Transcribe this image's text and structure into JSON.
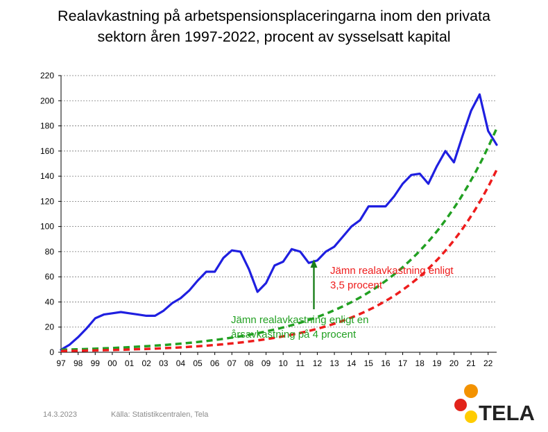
{
  "title": {
    "line1": "Realavkastning på arbetspensionsplaceringarna inom den privata",
    "line2": "sektorn åren 1997-2022, procent av sysselsatt kapital"
  },
  "footer": {
    "date": "14.3.2023",
    "source": "Källa: Statistikcentralen, Tela"
  },
  "logo": {
    "text": "TELA"
  },
  "colors": {
    "actual": "#1f1fe0",
    "smooth4": "#22a022",
    "smooth35": "#ee1c1c",
    "arrow": "#1a7f1a",
    "logo_orange": "#f39200",
    "logo_red": "#e2231a",
    "logo_yellow": "#ffcc00"
  },
  "chart_data": {
    "type": "line",
    "title": "Realavkastning på arbetspensionsplaceringarna inom den privata sektorn åren 1997-2022, procent av sysselsatt kapital",
    "xlabel": "",
    "ylabel": "",
    "xlim": [
      1997,
      2022.5
    ],
    "ylim": [
      0,
      220
    ],
    "yticks": [
      0,
      20,
      40,
      60,
      80,
      100,
      120,
      140,
      160,
      180,
      200,
      220
    ],
    "xtick_labels": [
      "97",
      "98",
      "99",
      "00",
      "01",
      "02",
      "03",
      "04",
      "05",
      "06",
      "07",
      "08",
      "09",
      "10",
      "11",
      "12",
      "13",
      "14",
      "15",
      "16",
      "17",
      "18",
      "19",
      "20",
      "21",
      "22"
    ],
    "grid": "horizontal dashed",
    "series": [
      {
        "key": "actual",
        "x": [
          1997.0,
          1997.5,
          1998.0,
          1998.5,
          1999.0,
          1999.5,
          2000.0,
          2000.5,
          2001.0,
          2001.5,
          2002.0,
          2002.5,
          2003.0,
          2003.5,
          2004.0,
          2004.5,
          2005.0,
          2005.5,
          2006.0,
          2006.5,
          2007.0,
          2007.5,
          2008.0,
          2008.5,
          2009.0,
          2009.5,
          2010.0,
          2010.5,
          2011.0,
          2011.5,
          2012.0,
          2012.5,
          2013.0,
          2013.5,
          2014.0,
          2014.5,
          2015.0,
          2015.5,
          2016.0,
          2016.5,
          2017.0,
          2017.5,
          2018.0,
          2018.5,
          2019.0,
          2019.5,
          2020.0,
          2020.5,
          2021.0,
          2021.5,
          2022.0,
          2022.5
        ],
        "values": [
          2,
          6,
          12,
          19,
          27,
          30,
          31,
          32,
          31,
          30,
          29,
          29,
          33,
          39,
          43,
          49,
          57,
          64,
          64,
          75,
          81,
          80,
          66,
          48,
          55,
          69,
          72,
          82,
          80,
          71,
          73,
          80,
          84,
          92,
          100,
          105,
          116,
          116,
          116,
          124,
          134,
          141,
          142,
          134,
          148,
          160,
          151,
          172,
          192,
          205,
          176,
          165
        ]
      },
      {
        "key": "smooth4",
        "name": "Jämn realavkastning enligt en årsavkastning på 4 procent",
        "x": [
          1997.0,
          2022.5
        ],
        "start": 2,
        "end": 178,
        "curve": "geometric"
      },
      {
        "key": "smooth35",
        "name": "Jämn realavkastning enligt 3,5 procent",
        "x": [
          1997.0,
          2022.5
        ],
        "start": 1,
        "end": 145,
        "curve": "geometric"
      }
    ],
    "annotations": [
      {
        "text_line1": "Jämn realavkastning enligt",
        "text_line2": "3,5 procent",
        "color_key": "smooth35"
      },
      {
        "text_line1": "Jämn realavkastning enligt en",
        "text_line2": "årsavkastning på 4 procent",
        "color_key": "smooth4",
        "arrow_x": 2011.8
      }
    ]
  }
}
